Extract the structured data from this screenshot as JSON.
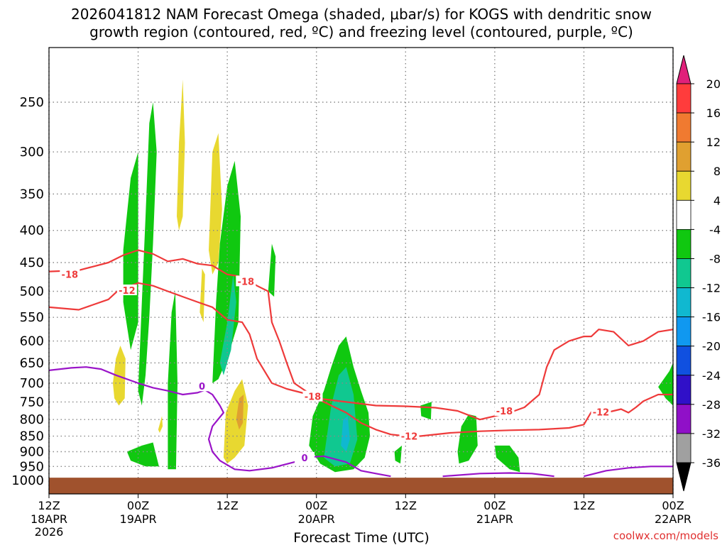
{
  "title_line1": "2026041812 NAM Forecast Omega (shaded, μbar/s) for KOGS with dendritic snow",
  "title_line2": "growth region (contoured, red, ºC) and freezing level (contoured, purple, ºC)",
  "xlabel": "Forecast Time (UTC)",
  "credit": "coolwx.com/models",
  "colors": {
    "dgz": "#ee3a3a",
    "freezing": "#9a14c8",
    "terrain": "#a0522d",
    "grid": "#888888"
  },
  "chart_data": {
    "type": "heatmap",
    "title": "2026041812 NAM Forecast Omega (shaded, μbar/s) for KOGS with dendritic snow growth region (contoured, red, ºC) and freezing level (contoured, purple, ºC)",
    "xlabel": "Forecast Time (UTC)",
    "ylabel": "",
    "x_unit": "forecast hour",
    "xlim": [
      0,
      84
    ],
    "y_unit": "hPa",
    "ylim": [
      1000,
      200
    ],
    "y_ticks": [
      250,
      300,
      350,
      400,
      450,
      500,
      550,
      600,
      650,
      700,
      750,
      800,
      850,
      900,
      950,
      1000
    ],
    "x_ticks": [
      {
        "hour": 0,
        "time": "12Z",
        "date": "18APR",
        "year": "2026"
      },
      {
        "hour": 12,
        "time": "00Z",
        "date": "19APR",
        "year": ""
      },
      {
        "hour": 24,
        "time": "12Z",
        "date": "",
        "year": ""
      },
      {
        "hour": 36,
        "time": "00Z",
        "date": "20APR",
        "year": ""
      },
      {
        "hour": 48,
        "time": "12Z",
        "date": "",
        "year": ""
      },
      {
        "hour": 60,
        "time": "00Z",
        "date": "21APR",
        "year": ""
      },
      {
        "hour": 72,
        "time": "12Z",
        "date": "",
        "year": ""
      },
      {
        "hour": 84,
        "time": "00Z",
        "date": "22APR",
        "year": ""
      }
    ],
    "grid": true,
    "colorbar": {
      "labels": [
        20,
        16,
        12,
        8,
        4,
        -4,
        -8,
        -12,
        -16,
        -20,
        -24,
        -28,
        -32,
        -36
      ],
      "colors": [
        "#e0207a",
        "#ff3c3c",
        "#f07a30",
        "#e0a030",
        "#e8d830",
        "#ffffff",
        "#10c810",
        "#10c890",
        "#10b8d0",
        "#1098f0",
        "#1050e0",
        "#3010c8",
        "#9010c8",
        "#a0a0a0",
        "#000000"
      ]
    },
    "omega_regions": [
      {
        "sign": "negative",
        "level": "-8",
        "polygon": [
          [
            12,
            720
          ],
          [
            12.5,
            520
          ],
          [
            13,
            380
          ],
          [
            13.5,
            270
          ],
          [
            14,
            250
          ],
          [
            14.5,
            300
          ],
          [
            14,
            420
          ],
          [
            13.5,
            550
          ],
          [
            13,
            680
          ],
          [
            12.5,
            760
          ]
        ]
      },
      {
        "sign": "negative",
        "level": "-8",
        "polygon": [
          [
            10,
            430
          ],
          [
            11,
            330
          ],
          [
            12,
            300
          ],
          [
            12,
            560
          ],
          [
            11,
            620
          ],
          [
            10,
            520
          ]
        ]
      },
      {
        "sign": "negative",
        "level": "-8",
        "polygon": [
          [
            16,
            960
          ],
          [
            16,
            700
          ],
          [
            16.5,
            540
          ],
          [
            17,
            500
          ],
          [
            17.3,
            700
          ],
          [
            17.1,
            960
          ]
        ]
      },
      {
        "sign": "negative",
        "level": "-8",
        "polygon": [
          [
            22,
            700
          ],
          [
            22.5,
            520
          ],
          [
            23,
            420
          ],
          [
            24,
            340
          ],
          [
            25,
            310
          ],
          [
            25.8,
            380
          ],
          [
            25.5,
            560
          ],
          [
            24,
            640
          ],
          [
            22.8,
            690
          ]
        ]
      },
      {
        "sign": "negative",
        "level": "-8",
        "polygon": [
          [
            29.5,
            500
          ],
          [
            30,
            420
          ],
          [
            30.5,
            440
          ],
          [
            30.3,
            510
          ]
        ]
      },
      {
        "sign": "negative",
        "level": "-8",
        "polygon": [
          [
            35,
            880
          ],
          [
            35.5,
            790
          ],
          [
            37,
            720
          ],
          [
            38,
            660
          ],
          [
            39,
            610
          ],
          [
            40,
            590
          ],
          [
            41,
            660
          ],
          [
            42,
            720
          ],
          [
            43,
            780
          ],
          [
            43.2,
            850
          ],
          [
            42.5,
            920
          ],
          [
            41,
            960
          ],
          [
            38.5,
            970
          ],
          [
            36.5,
            940
          ]
        ]
      },
      {
        "sign": "negative",
        "level": "-8",
        "polygon": [
          [
            50,
            760
          ],
          [
            51.5,
            750
          ],
          [
            51.4,
            800
          ],
          [
            50.1,
            790
          ]
        ]
      },
      {
        "sign": "negative",
        "level": "-8",
        "polygon": [
          [
            55,
            900
          ],
          [
            55.5,
            820
          ],
          [
            56.5,
            785
          ],
          [
            57.5,
            790
          ],
          [
            57.7,
            880
          ],
          [
            56.5,
            930
          ],
          [
            55.2,
            940
          ]
        ]
      },
      {
        "sign": "negative",
        "level": "-8",
        "polygon": [
          [
            60,
            880
          ],
          [
            62,
            880
          ],
          [
            63.2,
            920
          ],
          [
            63.4,
            970
          ],
          [
            62,
            960
          ],
          [
            60.2,
            920
          ]
        ]
      },
      {
        "sign": "negative",
        "level": "-8",
        "polygon": [
          [
            46.5,
            900
          ],
          [
            47.5,
            880
          ],
          [
            47.3,
            940
          ],
          [
            46.6,
            930
          ]
        ]
      },
      {
        "sign": "negative",
        "level": "-8",
        "polygon": [
          [
            82,
            710
          ],
          [
            83.5,
            670
          ],
          [
            84,
            650
          ],
          [
            84,
            760
          ],
          [
            83,
            740
          ]
        ]
      },
      {
        "sign": "negative",
        "level": "-8",
        "polygon": [
          [
            10.5,
            900
          ],
          [
            12.5,
            880
          ],
          [
            14,
            870
          ],
          [
            14.8,
            950
          ],
          [
            13,
            950
          ],
          [
            11,
            930
          ]
        ]
      },
      {
        "sign": "negative",
        "level": "-12",
        "polygon": [
          [
            37,
            920
          ],
          [
            38,
            760
          ],
          [
            39,
            680
          ],
          [
            40,
            660
          ],
          [
            41,
            730
          ],
          [
            41.5,
            860
          ],
          [
            40.5,
            940
          ],
          [
            38.5,
            950
          ]
        ]
      },
      {
        "sign": "negative",
        "level": "-12",
        "polygon": [
          [
            23,
            650
          ],
          [
            24,
            560
          ],
          [
            24.8,
            470
          ],
          [
            25.2,
            520
          ],
          [
            24.5,
            620
          ],
          [
            23.5,
            680
          ]
        ]
      },
      {
        "sign": "negative",
        "level": "-16",
        "polygon": [
          [
            39.3,
            880
          ],
          [
            39.6,
            800
          ],
          [
            40.2,
            790
          ],
          [
            40.5,
            860
          ],
          [
            40,
            900
          ]
        ]
      },
      {
        "sign": "positive",
        "level": "4",
        "polygon": [
          [
            8.6,
            700
          ],
          [
            9,
            640
          ],
          [
            9.6,
            610
          ],
          [
            10.3,
            640
          ],
          [
            10.2,
            740
          ],
          [
            9.4,
            760
          ],
          [
            8.8,
            740
          ]
        ]
      },
      {
        "sign": "positive",
        "level": "4",
        "polygon": [
          [
            17.2,
            380
          ],
          [
            17.5,
            290
          ],
          [
            18,
            230
          ],
          [
            18.3,
            290
          ],
          [
            18,
            380
          ],
          [
            17.5,
            400
          ]
        ]
      },
      {
        "sign": "positive",
        "level": "4",
        "polygon": [
          [
            21.5,
            430
          ],
          [
            22,
            300
          ],
          [
            22.8,
            280
          ],
          [
            23.3,
            370
          ],
          [
            22.8,
            450
          ],
          [
            22,
            470
          ]
        ]
      },
      {
        "sign": "positive",
        "level": "4",
        "polygon": [
          [
            20.3,
            540
          ],
          [
            20.6,
            460
          ],
          [
            21,
            470
          ],
          [
            20.8,
            560
          ]
        ]
      },
      {
        "sign": "positive",
        "level": "4",
        "polygon": [
          [
            23.5,
            920
          ],
          [
            23.8,
            780
          ],
          [
            25,
            720
          ],
          [
            26,
            690
          ],
          [
            26.8,
            760
          ],
          [
            26.3,
            880
          ],
          [
            25,
            920
          ],
          [
            24,
            940
          ]
        ]
      },
      {
        "sign": "positive",
        "level": "8",
        "polygon": [
          [
            25.2,
            800
          ],
          [
            25.6,
            740
          ],
          [
            26.2,
            730
          ],
          [
            26.1,
            810
          ],
          [
            25.6,
            830
          ]
        ]
      },
      {
        "sign": "positive",
        "level": "4",
        "polygon": [
          [
            14.7,
            830
          ],
          [
            15.2,
            790
          ],
          [
            15.3,
            820
          ],
          [
            14.9,
            840
          ]
        ]
      }
    ],
    "dgz_minus12_contour": [
      [
        0,
        530
      ],
      [
        4,
        535
      ],
      [
        8,
        515
      ],
      [
        10,
        490
      ],
      [
        11,
        490
      ],
      [
        12,
        485
      ],
      [
        14,
        490
      ],
      [
        16,
        500
      ],
      [
        18,
        510
      ],
      [
        20,
        520
      ],
      [
        22,
        530
      ],
      [
        24,
        555
      ],
      [
        26,
        560
      ],
      [
        27,
        585
      ],
      [
        28,
        640
      ],
      [
        30,
        700
      ],
      [
        32,
        715
      ],
      [
        35,
        730
      ],
      [
        38,
        760
      ],
      [
        40,
        780
      ],
      [
        42,
        810
      ],
      [
        44,
        830
      ],
      [
        46,
        845
      ],
      [
        48,
        850
      ],
      [
        50,
        850
      ],
      [
        54,
        840
      ],
      [
        58,
        835
      ],
      [
        62,
        832
      ],
      [
        66,
        830
      ],
      [
        70,
        825
      ],
      [
        72,
        815
      ],
      [
        73,
        778
      ],
      [
        75,
        780
      ],
      [
        77,
        770
      ],
      [
        78,
        780
      ],
      [
        79,
        765
      ],
      [
        80,
        748
      ],
      [
        82,
        730
      ],
      [
        84,
        730
      ]
    ],
    "dgz_minus18_contour": [
      [
        0,
        465
      ],
      [
        4,
        463
      ],
      [
        8,
        450
      ],
      [
        10,
        438
      ],
      [
        12,
        430
      ],
      [
        14,
        436
      ],
      [
        16,
        448
      ],
      [
        18,
        444
      ],
      [
        20,
        452
      ],
      [
        22,
        455
      ],
      [
        24,
        470
      ],
      [
        26,
        474
      ],
      [
        28,
        490
      ],
      [
        29.5,
        500
      ],
      [
        30,
        560
      ],
      [
        31,
        600
      ],
      [
        32,
        650
      ],
      [
        33,
        700
      ],
      [
        36,
        740
      ],
      [
        40,
        750
      ],
      [
        44,
        760
      ],
      [
        48,
        762
      ],
      [
        52,
        766
      ],
      [
        55,
        775
      ],
      [
        58,
        800
      ],
      [
        62,
        780
      ],
      [
        64,
        765
      ],
      [
        66,
        730
      ],
      [
        67,
        660
      ],
      [
        68,
        620
      ],
      [
        70,
        600
      ],
      [
        72,
        590
      ],
      [
        73,
        590
      ],
      [
        74,
        575
      ],
      [
        76,
        580
      ],
      [
        78,
        610
      ],
      [
        80,
        600
      ],
      [
        82,
        580
      ],
      [
        84,
        575
      ]
    ],
    "dgz_labels": [
      {
        "text": "-18",
        "x": 2.8,
        "y": 470
      },
      {
        "text": "-12",
        "x": 10.5,
        "y": 498
      },
      {
        "text": "-18",
        "x": 26.5,
        "y": 482
      },
      {
        "text": "-18",
        "x": 35.5,
        "y": 735
      },
      {
        "text": "-12",
        "x": 48.5,
        "y": 850
      },
      {
        "text": "-18",
        "x": 61.3,
        "y": 775
      },
      {
        "text": "-12",
        "x": 74.3,
        "y": 778
      }
    ],
    "freezing_0_contour_a": [
      [
        0,
        668
      ],
      [
        3,
        662
      ],
      [
        5,
        660
      ],
      [
        7,
        665
      ],
      [
        9,
        680
      ],
      [
        12,
        700
      ],
      [
        14,
        712
      ],
      [
        16,
        720
      ],
      [
        18,
        730
      ],
      [
        20,
        725
      ],
      [
        21,
        718
      ],
      [
        22,
        730
      ],
      [
        23,
        760
      ],
      [
        23.5,
        780
      ],
      [
        22,
        820
      ],
      [
        21.5,
        860
      ],
      [
        22,
        900
      ],
      [
        23,
        930
      ],
      [
        25,
        960
      ],
      [
        27,
        965
      ],
      [
        30,
        955
      ],
      [
        33,
        935
      ],
      [
        35,
        918
      ],
      [
        37,
        915
      ],
      [
        40,
        935
      ],
      [
        42,
        965
      ],
      [
        44,
        975
      ],
      [
        46,
        985
      ]
    ],
    "freezing_0_contour_b": [
      [
        53,
        985
      ],
      [
        58,
        975
      ],
      [
        62,
        973
      ],
      [
        65,
        975
      ],
      [
        68,
        985
      ]
    ],
    "freezing_0_contour_c": [
      [
        72,
        985
      ],
      [
        75,
        965
      ],
      [
        78,
        955
      ],
      [
        81,
        950
      ],
      [
        84,
        950
      ]
    ],
    "freezing_label": {
      "text": "0",
      "x": 20.6,
      "y": 708
    },
    "freezing_label2": {
      "text": "0",
      "x": 34.4,
      "y": 920
    },
    "terrain_top_hPa": 990
  }
}
